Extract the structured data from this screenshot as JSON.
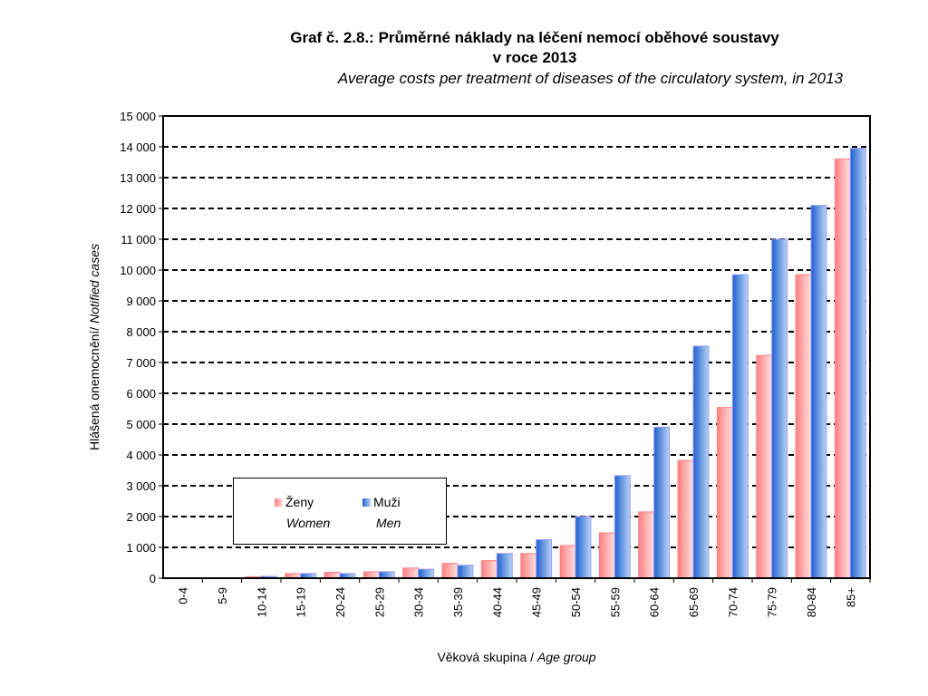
{
  "chart_data": {
    "type": "bar",
    "title": "Graf č. 2.8.: Průměrné náklady na léčení nemocí oběhové soustavy",
    "title_line2": "v roce 2013",
    "subtitle": "Average costs per treatment of diseases of the circulatory system, in 2013",
    "xlabel": "Věková skupina / ",
    "xlabel_en": "Age group",
    "ylabel": "Hlášená onemocnění/ ",
    "ylabel_en": "Notified cases",
    "ylim": [
      0,
      15000
    ],
    "yticks": [
      "0",
      "1 000",
      "2 000",
      "3 000",
      "4 000",
      "5 000",
      "6 000",
      "7 000",
      "8 000",
      "9 000",
      "10 000",
      "11 000",
      "12 000",
      "13 000",
      "14 000",
      "15 000"
    ],
    "grid": true,
    "legend_position": "bottom-left",
    "categories": [
      "0-4",
      "5-9",
      "10-14",
      "15-19",
      "20-24",
      "25-29",
      "30-34",
      "35-39",
      "40-44",
      "45-49",
      "50-54",
      "55-59",
      "60-64",
      "65-69",
      "70-74",
      "75-79",
      "80-84",
      "85+"
    ],
    "series": [
      {
        "name": "Ženy",
        "name_en": "Women",
        "color": "#ff8080",
        "values": [
          5,
          10,
          50,
          150,
          190,
          210,
          330,
          480,
          570,
          800,
          1060,
          1470,
          2150,
          3820,
          5540,
          7230,
          9850,
          13600
        ]
      },
      {
        "name": "Muži",
        "name_en": "Men",
        "color": "#3366cc",
        "values": [
          10,
          15,
          60,
          150,
          150,
          210,
          290,
          420,
          800,
          1250,
          2000,
          3330,
          4900,
          7530,
          9850,
          11000,
          12100,
          13950
        ]
      }
    ]
  }
}
